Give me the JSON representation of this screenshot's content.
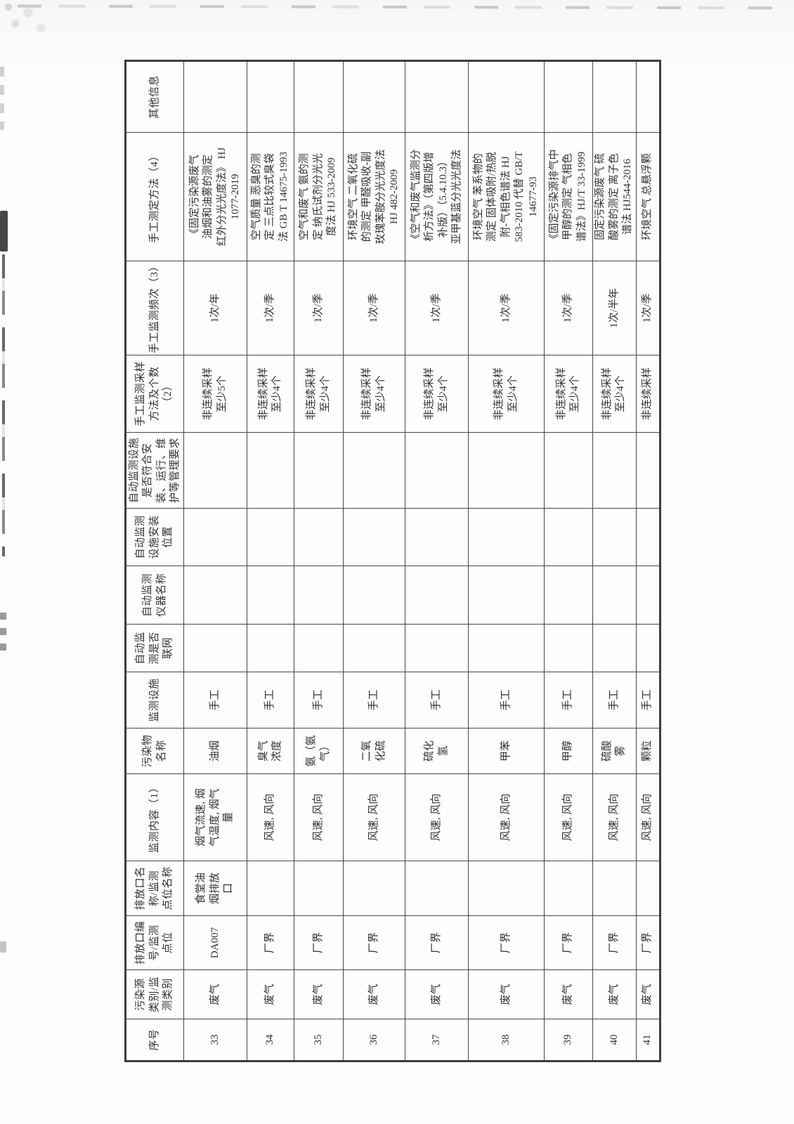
{
  "table": {
    "headers": [
      {
        "id": "xuhao",
        "label": "序号"
      },
      {
        "id": "wuranyuan-leibie",
        "label": "污染源\n类别/监\n测类别"
      },
      {
        "id": "paifangkou-bianhao",
        "label": "排放口编\n号/监测\n点位"
      },
      {
        "id": "paifangkou-mingcheng",
        "label": "排放口名\n称/监测\n点位名称"
      },
      {
        "id": "jiance-neirong",
        "label": "监测内容（1）"
      },
      {
        "id": "wuranwu-mingcheng",
        "label": "污染物\n名称"
      },
      {
        "id": "jiance-sheshi",
        "label": "监测设施"
      },
      {
        "id": "zidong-lianwang",
        "label": "自动监\n测是否\n联网"
      },
      {
        "id": "zidong-yiqi-mingcheng",
        "label": "自动监测\n仪器名称"
      },
      {
        "id": "zidong-anzhuang-weizhi",
        "label": "自动监测\n设施安装\n位置"
      },
      {
        "id": "zidong-guanli-yaoqiu",
        "label": "自动监测设施\n是否符合安\n装、运行、维\n护等管理要求"
      },
      {
        "id": "shougong-caiyang-fangfa",
        "label": "手工监测采样\n方法及个数\n（2）"
      },
      {
        "id": "shougong-pinci",
        "label": "手工监测频次（3）"
      },
      {
        "id": "shougong-ceding-fangfa",
        "label": "手工测定方法（4）"
      },
      {
        "id": "qita-xinxi",
        "label": "其他信息"
      }
    ],
    "rows": [
      {
        "cells": [
          "33",
          "废气",
          "DA007",
          "食堂油\n烟排放\n口",
          "烟气流速, 烟\n气温度, 烟气\n量",
          "油烟",
          "手工",
          "",
          "",
          "",
          "",
          "非连续采样\n至少5个",
          "1次/年",
          "《固定污染源废气\n油烟和油雾的测定\n红外分光光度法》 HJ\n1077-2019",
          ""
        ]
      },
      {
        "cells": [
          "34",
          "废气",
          "厂界",
          "",
          "风速, 风向",
          "臭气\n浓度",
          "手工",
          "",
          "",
          "",
          "",
          "非连续采样\n至少4个",
          "1次/季",
          "空气质量 恶臭的测\n定 三点比较式臭袋\n法 GB T 14675-1993",
          ""
        ]
      },
      {
        "cells": [
          "35",
          "废气",
          "厂界",
          "",
          "风速, 风向",
          "氨（氨\n气）",
          "手工",
          "",
          "",
          "",
          "",
          "非连续采样\n至少4个",
          "1次/季",
          "空气和废气 氨的测\n定 纳氏试剂分光光\n度法 HJ 533-2009",
          ""
        ]
      },
      {
        "cells": [
          "36",
          "废气",
          "厂界",
          "",
          "风速, 风向",
          "二氧\n化硫",
          "手工",
          "",
          "",
          "",
          "",
          "非连续采样\n至少4个",
          "1次/季",
          "环境空气 二氧化硫\n的测定 甲醛吸收-副\n玫瑰苯胺分光光度法\nHJ 482-2009",
          ""
        ]
      },
      {
        "cells": [
          "37",
          "废气",
          "厂界",
          "",
          "风速, 风向",
          "硫化\n氢",
          "手工",
          "",
          "",
          "",
          "",
          "非连续采样\n至少4个",
          "1次/季",
          "《空气和废气监测分\n析方法》（第四版增\n补版）（5.4.10.3）\n亚甲基蓝分光光度法",
          ""
        ]
      },
      {
        "cells": [
          "38",
          "废气",
          "厂界",
          "",
          "风速, 风向",
          "甲苯",
          "手工",
          "",
          "",
          "",
          "",
          "非连续采样\n至少4个",
          "1次/季",
          "环境空气 苯系物的\n测定 固体吸附/热脱\n附-气相色谱法 HJ\n583-2010 代替 GB/T\n14677-93",
          ""
        ]
      },
      {
        "cells": [
          "39",
          "废气",
          "厂界",
          "",
          "风速, 风向",
          "甲醇",
          "手工",
          "",
          "",
          "",
          "",
          "非连续采样\n至少4个",
          "1次/季",
          "《固定污染源排气中\n甲醇的测定 气相色\n谱法》HJ/T 33-1999",
          ""
        ]
      },
      {
        "cells": [
          "40",
          "废气",
          "厂界",
          "",
          "风速, 风向",
          "硫酸\n雾",
          "手工",
          "",
          "",
          "",
          "",
          "非连续采样\n至少4个",
          "1次/半年",
          "固定污染源废气 硫\n酸雾的测定 离子色\n谱法 HJ544-2016",
          ""
        ]
      },
      {
        "cells": [
          "41",
          "废气",
          "厂界",
          "",
          "风速, 风向",
          "颗粒",
          "手工",
          "",
          "",
          "",
          "",
          "非连续采样",
          "1次/季",
          "环境空气 总悬浮颗",
          ""
        ]
      }
    ]
  }
}
